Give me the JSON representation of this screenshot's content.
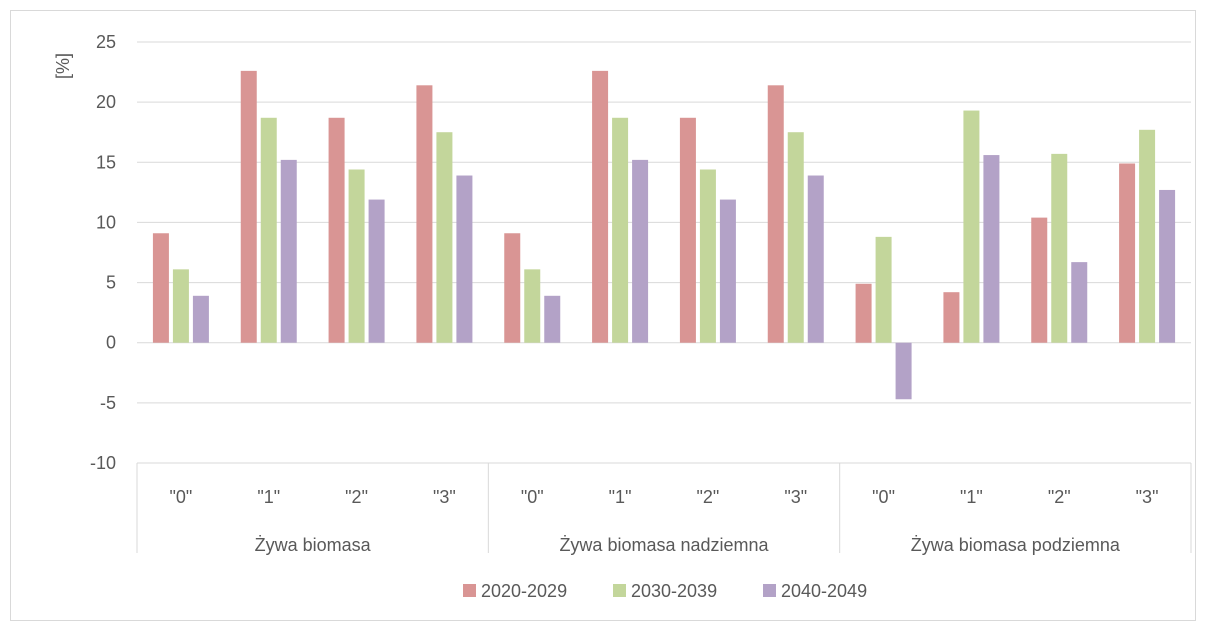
{
  "chart_data": {
    "type": "bar",
    "ylabel": "[%]",
    "ylim": [
      -10,
      25
    ],
    "yticks": [
      -10,
      -5,
      0,
      5,
      10,
      15,
      20,
      25
    ],
    "grid": true,
    "legend_position": "bottom",
    "groups": [
      {
        "label": "Żywa biomasa",
        "categories": [
          "\"0\"",
          "\"1\"",
          "\"2\"",
          "\"3\""
        ]
      },
      {
        "label": "Żywa biomasa nadziemna",
        "categories": [
          "\"0\"",
          "\"1\"",
          "\"2\"",
          "\"3\""
        ]
      },
      {
        "label": "Żywa biomasa podziemna",
        "categories": [
          "\"0\"",
          "\"1\"",
          "\"2\"",
          "\"3\""
        ]
      }
    ],
    "series": [
      {
        "name": "2020-2029",
        "color": "#d99594",
        "values": [
          9.1,
          22.6,
          18.7,
          21.4,
          9.1,
          22.6,
          18.7,
          21.4,
          4.9,
          4.2,
          10.4,
          14.9
        ]
      },
      {
        "name": "2030-2039",
        "color": "#c3d69b",
        "values": [
          6.1,
          18.7,
          14.4,
          17.5,
          6.1,
          18.7,
          14.4,
          17.5,
          8.8,
          19.3,
          15.7,
          17.7
        ]
      },
      {
        "name": "2040-2049",
        "color": "#b3a2c7",
        "values": [
          3.9,
          15.2,
          11.9,
          13.9,
          3.9,
          15.2,
          11.9,
          13.9,
          -4.7,
          15.6,
          6.7,
          12.7
        ]
      }
    ]
  }
}
